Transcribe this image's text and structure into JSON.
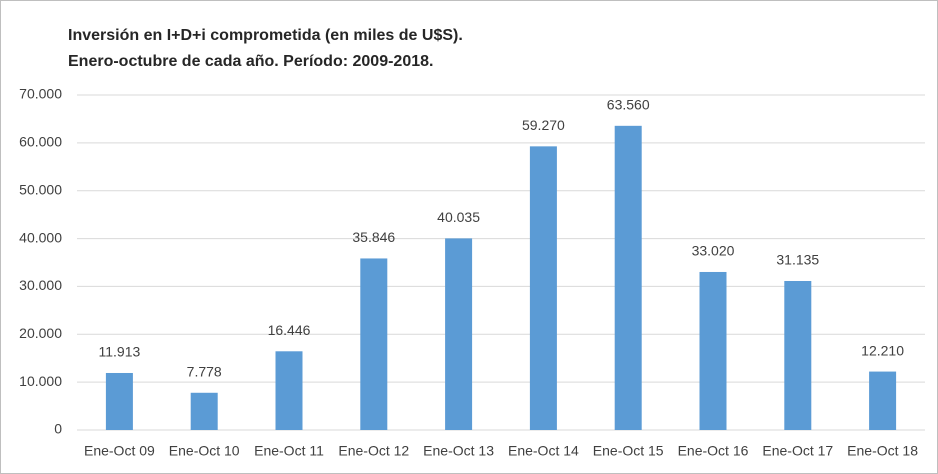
{
  "chart_data": {
    "type": "bar",
    "title": "Inversión en I+D+i comprometida (en miles de U$S).",
    "subtitle": "Enero-octubre de cada año. Período: 2009-2018.",
    "categories": [
      "Ene-Oct 09",
      "Ene-Oct 10",
      "Ene-Oct 11",
      "Ene-Oct 12",
      "Ene-Oct 13",
      "Ene-Oct 14",
      "Ene-Oct 15",
      "Ene-Oct 16",
      "Ene-Oct 17",
      "Ene-Oct 18"
    ],
    "values": [
      11913,
      7778,
      16446,
      35846,
      40035,
      59270,
      63560,
      33020,
      31135,
      12210
    ],
    "value_labels": [
      "11.913",
      "7.778",
      "16.446",
      "35.846",
      "40.035",
      "59.270",
      "63.560",
      "33.020",
      "31.135",
      "12.210"
    ],
    "color": "#5b9bd5",
    "ylim": [
      0,
      70000
    ],
    "yticks": [
      0,
      {
        "value": 10000,
        "label": "10.000"
      },
      {
        "value": 20000,
        "label": "20.000"
      },
      {
        "value": 30000,
        "label": "30.000"
      },
      {
        "value": 40000,
        "label": "40.000"
      },
      {
        "value": 50000,
        "label": "50.000"
      },
      {
        "value": 60000,
        "label": "60.000"
      },
      {
        "value": 70000,
        "label": "70.000"
      }
    ],
    "grid": true
  }
}
